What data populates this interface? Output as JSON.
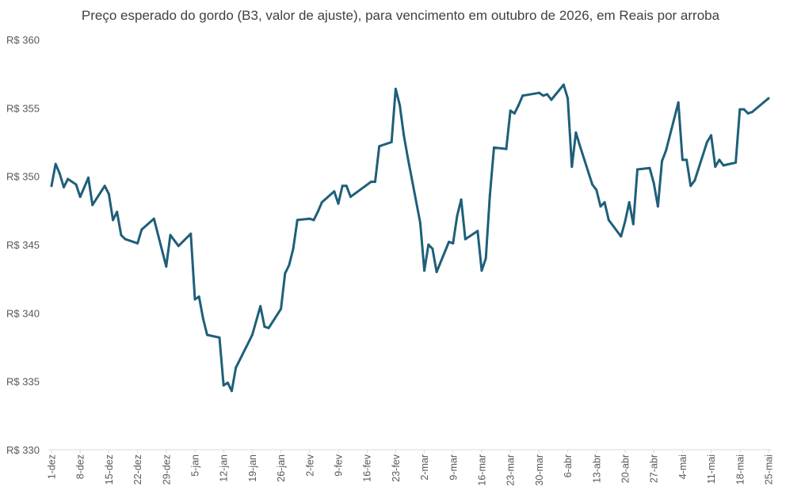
{
  "chart_data": {
    "type": "line",
    "title": "Preço esperado do gordo (B3, valor de ajuste), para vencimento em outubro de 2026, em Reais por arroba",
    "xlabel": "",
    "ylabel": "",
    "ylim": [
      330,
      360
    ],
    "ytick_values": [
      330,
      335,
      340,
      345,
      350,
      355,
      360
    ],
    "ytick_labels": [
      "R$ 330",
      "R$ 335",
      "R$ 340",
      "R$ 345",
      "R$ 350",
      "R$ 355",
      "R$ 360"
    ],
    "xtick_labels": [
      "1-dez",
      "8-dez",
      "15-dez",
      "22-dez",
      "29-dez",
      "5-jan",
      "12-jan",
      "19-jan",
      "26-jan",
      "2-fev",
      "9-fev",
      "16-fev",
      "23-fev",
      "2-mar",
      "9-mar",
      "16-mar",
      "23-mar",
      "30-mar",
      "6-abr",
      "13-abr",
      "20-abr",
      "27-abr",
      "4-mai",
      "11-mai",
      "18-mai",
      "25-mai"
    ],
    "xtick_dates": [
      "2025-12-01",
      "2025-12-08",
      "2025-12-15",
      "2025-12-22",
      "2025-12-29",
      "2026-01-05",
      "2026-01-12",
      "2026-01-19",
      "2026-01-26",
      "2026-02-02",
      "2026-02-09",
      "2026-02-16",
      "2026-02-23",
      "2026-03-02",
      "2026-03-09",
      "2026-03-16",
      "2026-03-23",
      "2026-03-30",
      "2026-04-06",
      "2026-04-13",
      "2026-04-20",
      "2026-04-27",
      "2026-05-04",
      "2026-05-11",
      "2026-05-18",
      "2026-05-25"
    ],
    "grid": false,
    "line_color": "#1f5f7a",
    "series": [
      {
        "x": [
          "2025-12-01",
          "2025-12-02",
          "2025-12-03",
          "2025-12-04",
          "2025-12-05",
          "2025-12-07",
          "2025-12-08",
          "2025-12-09",
          "2025-12-10",
          "2025-12-11",
          "2025-12-14",
          "2025-12-15",
          "2025-12-16",
          "2025-12-17",
          "2025-12-18",
          "2025-12-19",
          "2025-12-22",
          "2025-12-23",
          "2025-12-26",
          "2025-12-29",
          "2025-12-30",
          "2026-01-01",
          "2026-01-04",
          "2026-01-05",
          "2026-01-06",
          "2026-01-07",
          "2026-01-08",
          "2026-01-11",
          "2026-01-12",
          "2026-01-13",
          "2026-01-14",
          "2026-01-15",
          "2026-01-19",
          "2026-01-21",
          "2026-01-22",
          "2026-01-23",
          "2026-01-26",
          "2026-01-27",
          "2026-01-28",
          "2026-01-29",
          "2026-01-30",
          "2026-02-02",
          "2026-02-03",
          "2026-02-04",
          "2026-02-05",
          "2026-02-08",
          "2026-02-09",
          "2026-02-10",
          "2026-02-11",
          "2026-02-12",
          "2026-02-17",
          "2026-02-18",
          "2026-02-19",
          "2026-02-22",
          "2026-02-23",
          "2026-02-24",
          "2026-02-25",
          "2026-02-26",
          "2026-03-01",
          "2026-03-02",
          "2026-03-03",
          "2026-03-04",
          "2026-03-05",
          "2026-03-08",
          "2026-03-09",
          "2026-03-10",
          "2026-03-11",
          "2026-03-12",
          "2026-03-15",
          "2026-03-16",
          "2026-03-17",
          "2026-03-18",
          "2026-03-19",
          "2026-03-22",
          "2026-03-23",
          "2026-03-24",
          "2026-03-25",
          "2026-03-26",
          "2026-03-30",
          "2026-03-31",
          "2026-04-01",
          "2026-04-02",
          "2026-04-05",
          "2026-04-06",
          "2026-04-07",
          "2026-04-08",
          "2026-04-09",
          "2026-04-12",
          "2026-04-13",
          "2026-04-14",
          "2026-04-15",
          "2026-04-16",
          "2026-04-19",
          "2026-04-20",
          "2026-04-21",
          "2026-04-22",
          "2026-04-23",
          "2026-04-26",
          "2026-04-27",
          "2026-04-28",
          "2026-04-29",
          "2026-04-30",
          "2026-05-03",
          "2026-05-04",
          "2026-05-05",
          "2026-05-06",
          "2026-05-07",
          "2026-05-10",
          "2026-05-11",
          "2026-05-12",
          "2026-05-13",
          "2026-05-14",
          "2026-05-17",
          "2026-05-18",
          "2026-05-19",
          "2026-05-20",
          "2026-05-21",
          "2026-05-25"
        ],
        "values": [
          349.3,
          350.9,
          350.2,
          349.2,
          349.8,
          349.4,
          348.5,
          349.2,
          349.9,
          347.9,
          349.3,
          348.7,
          346.8,
          347.4,
          345.7,
          345.4,
          345.1,
          346.1,
          346.9,
          343.4,
          345.7,
          344.9,
          345.8,
          341.0,
          341.2,
          339.6,
          338.4,
          338.2,
          334.7,
          334.9,
          334.3,
          336.0,
          338.4,
          340.5,
          339.0,
          338.9,
          340.3,
          342.9,
          343.5,
          344.7,
          346.8,
          346.9,
          346.8,
          347.4,
          348.1,
          348.9,
          348.0,
          349.3,
          349.3,
          348.5,
          349.6,
          349.6,
          352.2,
          352.5,
          356.4,
          355.2,
          353.0,
          351.3,
          346.6,
          343.1,
          345.0,
          344.7,
          343.0,
          345.2,
          345.1,
          347.1,
          348.3,
          345.4,
          346.0,
          343.1,
          344.0,
          348.6,
          352.1,
          352.0,
          354.8,
          354.6,
          355.2,
          355.9,
          356.1,
          355.9,
          356.0,
          355.6,
          356.7,
          355.7,
          350.7,
          353.2,
          352.2,
          349.4,
          349.0,
          347.8,
          348.1,
          346.8,
          345.6,
          346.7,
          348.1,
          346.5,
          350.5,
          350.6,
          349.5,
          347.8,
          351.1,
          351.9,
          355.4,
          351.2,
          351.2,
          349.3,
          349.7,
          352.5,
          353.0,
          350.7,
          351.2,
          350.8,
          351.0,
          354.9,
          354.9,
          354.6,
          354.7,
          355.7
        ]
      }
    ]
  }
}
